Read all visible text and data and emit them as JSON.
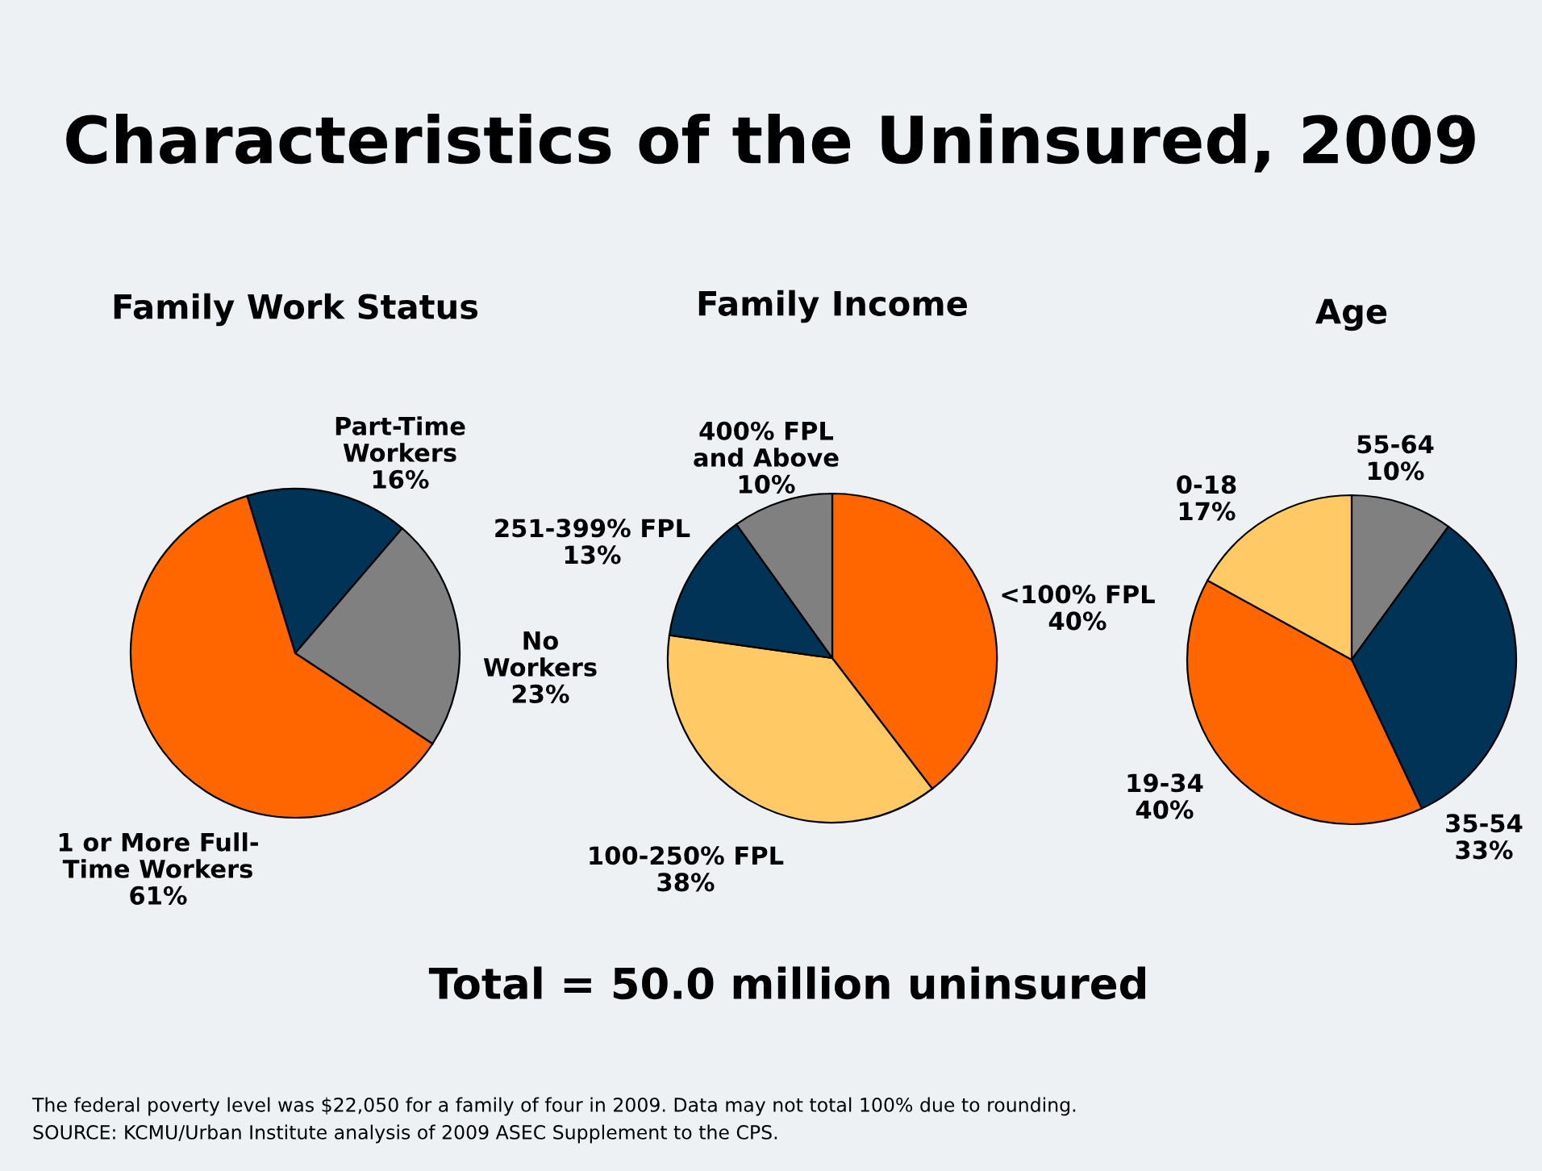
{
  "chart_data": [
    {
      "type": "pie",
      "title": "Family Work Status",
      "categories": [
        "Part-Time\nWorkers",
        "No\nWorkers",
        "1 or More Full-\nTime Workers"
      ],
      "values": [
        16,
        23,
        61
      ],
      "value_labels": [
        "16%",
        "23%",
        "61%"
      ],
      "colors": [
        "#003355",
        "#808080",
        "#ff6600"
      ]
    },
    {
      "type": "pie",
      "title": "Family Income",
      "categories": [
        "<100% FPL",
        "100-250% FPL",
        "251-399% FPL",
        "400% FPL\nand Above"
      ],
      "values": [
        40,
        38,
        13,
        10
      ],
      "value_labels": [
        "40%",
        "38%",
        "13%",
        "10%"
      ],
      "colors": [
        "#ff6600",
        "#ffc966",
        "#003355",
        "#808080"
      ]
    },
    {
      "type": "pie",
      "title": "Age",
      "categories": [
        "55-64",
        "35-54",
        "19-34",
        "0-18"
      ],
      "values": [
        10,
        33,
        40,
        17
      ],
      "value_labels": [
        "10%",
        "33%",
        "40%",
        "17%"
      ],
      "colors": [
        "#808080",
        "#003355",
        "#ff6600",
        "#ffc966"
      ]
    },
    {
      "type": "other",
      "title": "Characteristics of the Uninsured, 2009",
      "annotations": [
        "Total = 50.0 million uninsured",
        "The federal poverty level was $22,050 for a family of four in 2009. Data may not total 100% due to rounding.",
        "SOURCE: KCMU/Urban Institute analysis of 2009 ASEC Supplement to the CPS."
      ]
    }
  ]
}
